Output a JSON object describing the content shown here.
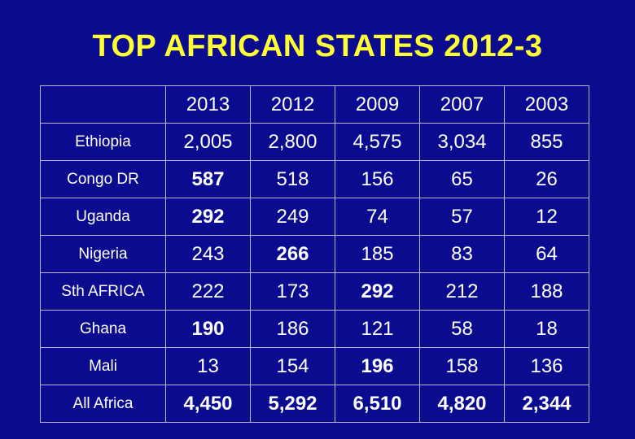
{
  "title": "TOP AFRICAN STATES 2012-3",
  "table": {
    "columns": [
      "",
      "2013",
      "2012",
      "2009",
      "2007",
      "2003"
    ],
    "rows": [
      {
        "country": "Ethiopia",
        "values": [
          "2,005",
          "2,800",
          "4,575",
          "3,034",
          "855"
        ]
      },
      {
        "country": "Congo DR",
        "values": [
          "587",
          "518",
          "156",
          "65",
          "26"
        ]
      },
      {
        "country": "Uganda",
        "values": [
          "292",
          "249",
          "74",
          "57",
          "12"
        ]
      },
      {
        "country": "Nigeria",
        "values": [
          "243",
          "266",
          "185",
          "83",
          "64"
        ]
      },
      {
        "country": "Sth AFRICA",
        "values": [
          "222",
          "173",
          "292",
          "212",
          "188"
        ]
      },
      {
        "country": "Ghana",
        "values": [
          "190",
          "186",
          "121",
          "58",
          "18"
        ]
      },
      {
        "country": "Mali",
        "values": [
          "13",
          "154",
          "196",
          "158",
          "136"
        ]
      },
      {
        "country": "All Africa",
        "values": [
          "4,450",
          "5,292",
          "6,510",
          "4,820",
          "2,344"
        ]
      }
    ]
  },
  "colors": {
    "background": "#0b0b8f",
    "title": "#ffff33",
    "text": "#ffffff",
    "gridline": "#b8b8d8"
  }
}
